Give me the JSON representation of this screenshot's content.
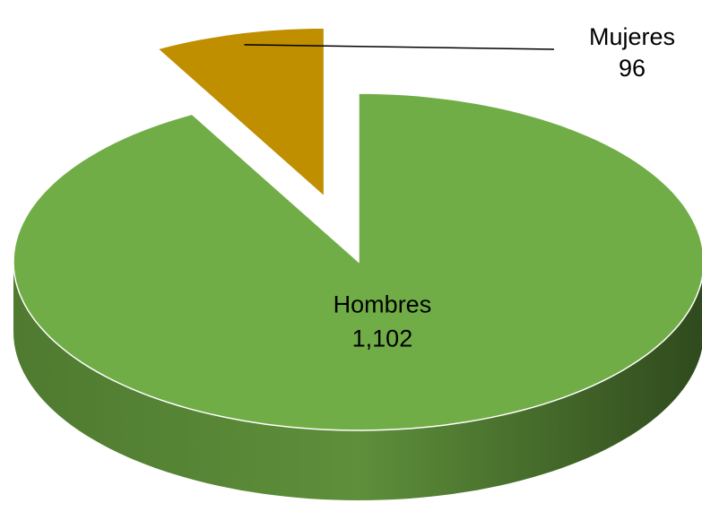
{
  "chart_data": {
    "type": "pie",
    "categories": [
      "Hombres",
      "Mujeres"
    ],
    "values": [
      1102,
      96
    ],
    "value_labels": [
      "1,102",
      "96"
    ],
    "colors": [
      "#70ad47",
      "#bf8f00"
    ]
  }
}
